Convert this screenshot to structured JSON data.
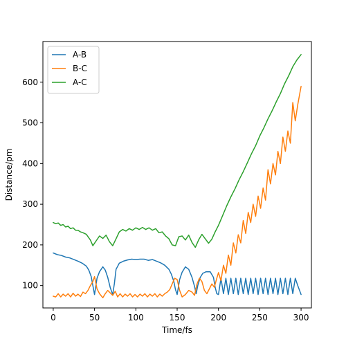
{
  "chart_data": {
    "type": "line",
    "title": "",
    "xlabel": "Time/fs",
    "ylabel": "Distance/pm",
    "xlim": [
      -12.5,
      312.5
    ],
    "ylim": [
      45,
      700
    ],
    "xticks": [
      0,
      50,
      100,
      150,
      200,
      250,
      300
    ],
    "yticks": [
      100,
      200,
      300,
      400,
      500,
      600
    ],
    "grid": false,
    "legend_position": "top-left",
    "series": [
      {
        "name": "A-B",
        "color": "#1f77b4",
        "x": [
          0,
          5,
          10,
          15,
          20,
          25,
          30,
          35,
          40,
          43,
          46,
          48,
          50,
          53,
          56,
          60,
          63,
          66,
          69,
          72,
          74,
          76,
          80,
          85,
          90,
          95,
          100,
          105,
          110,
          115,
          120,
          125,
          130,
          135,
          140,
          143,
          146,
          148,
          150,
          153,
          156,
          160,
          164,
          168,
          171,
          173,
          175,
          178,
          181,
          185,
          190,
          194,
          196,
          198,
          200,
          203,
          206,
          209,
          212,
          215,
          218,
          221,
          224,
          227,
          230,
          233,
          236,
          239,
          242,
          245,
          248,
          251,
          254,
          257,
          260,
          263,
          266,
          269,
          272,
          275,
          278,
          281,
          284,
          287,
          290,
          293,
          296,
          300
        ],
        "values": [
          180,
          176,
          174,
          170,
          168,
          164,
          160,
          155,
          148,
          138,
          122,
          100,
          78,
          118,
          134,
          146,
          138,
          120,
          95,
          78,
          105,
          140,
          155,
          160,
          163,
          165,
          164,
          165,
          165,
          162,
          164,
          160,
          156,
          150,
          140,
          128,
          110,
          90,
          78,
          115,
          133,
          146,
          140,
          120,
          98,
          80,
          100,
          120,
          130,
          134,
          134,
          120,
          96,
          80,
          78,
          118,
          80,
          118,
          78,
          118,
          80,
          118,
          78,
          118,
          80,
          118,
          78,
          118,
          80,
          118,
          78,
          118,
          80,
          118,
          78,
          118,
          80,
          118,
          78,
          118,
          80,
          118,
          78,
          118,
          80,
          118,
          100,
          78
        ]
      },
      {
        "name": "B-C",
        "color": "#ff7f0e",
        "x": [
          0,
          3,
          6,
          9,
          12,
          15,
          18,
          21,
          24,
          27,
          30,
          33,
          36,
          39,
          42,
          45,
          48,
          50,
          53,
          56,
          60,
          63,
          66,
          69,
          72,
          75,
          78,
          81,
          84,
          87,
          90,
          93,
          96,
          99,
          102,
          105,
          108,
          111,
          114,
          117,
          120,
          123,
          126,
          129,
          132,
          135,
          138,
          141,
          144,
          147,
          150,
          153,
          156,
          160,
          164,
          168,
          171,
          174,
          177,
          180,
          183,
          186,
          189,
          192,
          195,
          198,
          200,
          203,
          206,
          209,
          212,
          215,
          218,
          221,
          224,
          227,
          230,
          233,
          236,
          239,
          242,
          245,
          248,
          251,
          254,
          257,
          260,
          263,
          266,
          269,
          272,
          275,
          278,
          281,
          284,
          287,
          290,
          293,
          296,
          300
        ],
        "values": [
          74,
          72,
          80,
          72,
          79,
          74,
          80,
          72,
          81,
          74,
          79,
          73,
          84,
          80,
          88,
          100,
          110,
          122,
          92,
          80,
          70,
          80,
          88,
          82,
          76,
          86,
          72,
          80,
          72,
          79,
          74,
          80,
          72,
          78,
          72,
          79,
          74,
          80,
          72,
          79,
          74,
          80,
          72,
          79,
          74,
          80,
          84,
          90,
          104,
          118,
          115,
          88,
          72,
          78,
          88,
          84,
          76,
          104,
          118,
          110,
          88,
          80,
          92,
          104,
          96,
          118,
          132,
          112,
          150,
          130,
          175,
          150,
          205,
          180,
          225,
          205,
          260,
          228,
          280,
          255,
          300,
          270,
          320,
          290,
          340,
          310,
          385,
          350,
          400,
          372,
          430,
          400,
          465,
          430,
          480,
          450,
          550,
          505,
          545,
          590
        ]
      },
      {
        "name": "A-C",
        "color": "#2ca02c",
        "x": [
          0,
          3,
          6,
          9,
          12,
          15,
          18,
          21,
          24,
          27,
          30,
          33,
          36,
          40,
          45,
          48,
          52,
          56,
          60,
          64,
          68,
          72,
          76,
          80,
          84,
          88,
          92,
          96,
          100,
          104,
          108,
          112,
          116,
          120,
          124,
          128,
          132,
          136,
          140,
          144,
          148,
          152,
          156,
          160,
          164,
          168,
          172,
          176,
          180,
          184,
          188,
          192,
          196,
          200,
          205,
          210,
          215,
          220,
          225,
          230,
          235,
          240,
          245,
          250,
          255,
          260,
          265,
          270,
          275,
          280,
          285,
          290,
          295,
          300
        ],
        "values": [
          255,
          252,
          254,
          248,
          250,
          244,
          246,
          240,
          242,
          236,
          236,
          232,
          230,
          226,
          212,
          198,
          210,
          222,
          216,
          224,
          208,
          198,
          215,
          232,
          238,
          234,
          240,
          236,
          242,
          238,
          243,
          238,
          242,
          236,
          240,
          230,
          232,
          222,
          215,
          200,
          198,
          220,
          222,
          212,
          224,
          206,
          194,
          212,
          226,
          215,
          204,
          214,
          232,
          248,
          272,
          296,
          318,
          338,
          360,
          380,
          402,
          424,
          444,
          468,
          488,
          510,
          530,
          552,
          572,
          596,
          616,
          638,
          655,
          668
        ]
      }
    ]
  }
}
